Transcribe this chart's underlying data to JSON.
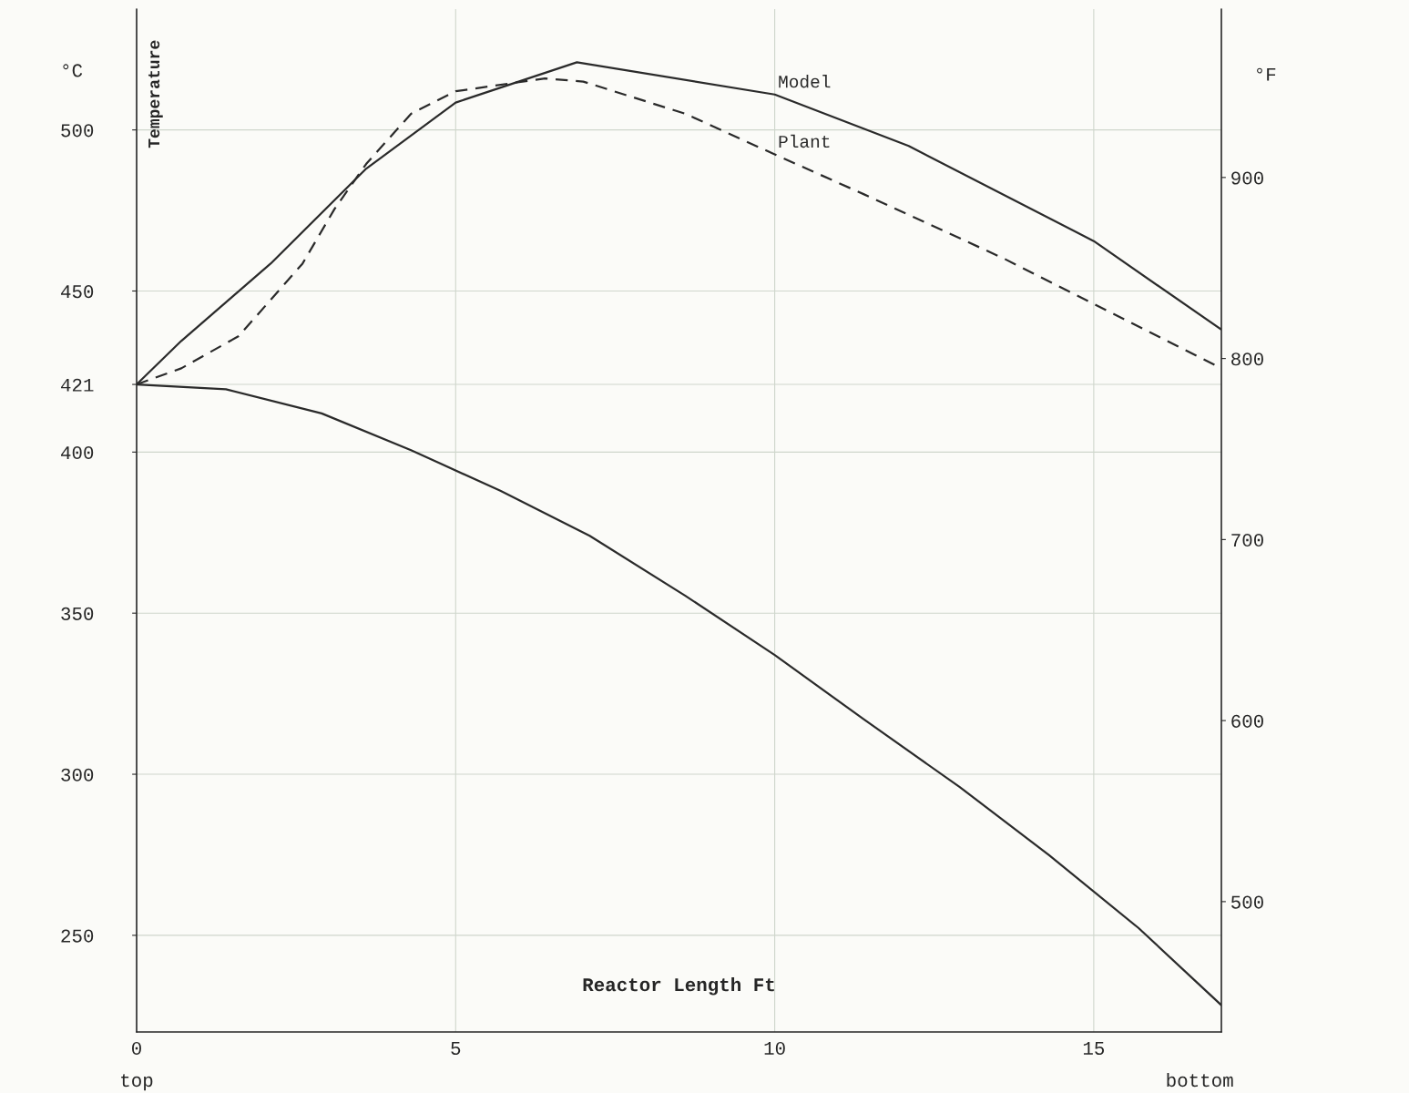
{
  "chart_data": {
    "type": "line",
    "xlabel": "Reactor Length Ft",
    "ylabel": "Temperature",
    "y2label": "°F",
    "annotations": [
      "°C",
      "top",
      "bottom"
    ],
    "xlim": [
      0,
      17
    ],
    "xticks": [
      0,
      5,
      10,
      15
    ],
    "ylim": [
      220,
      537.5
    ],
    "yticks": [
      250,
      300,
      350,
      400,
      421,
      450,
      500
    ],
    "y2lim": [
      428,
      993
    ],
    "y2ticks": [
      500,
      600,
      700,
      800,
      900
    ],
    "grid": true,
    "legend": false,
    "series": [
      {
        "name": "Model",
        "color": "#2a2a2a",
        "line_style": "solid",
        "x": [
          0,
          0.7,
          2.1,
          3.6,
          5,
          6.9,
          10,
          12.1,
          15,
          17
        ],
        "values": [
          421,
          434.5,
          458.5,
          488,
          508.5,
          521,
          511,
          495,
          465.5,
          438
        ]
      },
      {
        "name": "Plant",
        "color": "#2a2a2a",
        "line_style": "dashed",
        "x": [
          0,
          0.7,
          1.6,
          2.6,
          3.1,
          3.6,
          4.3,
          5,
          6.4,
          7,
          8.6,
          10,
          11.4,
          13.6,
          15,
          17
        ],
        "values": [
          421,
          426,
          436,
          458.5,
          475.4,
          489.5,
          505,
          512,
          516,
          515,
          505,
          492.4,
          480,
          460,
          446,
          426
        ]
      },
      {
        "color": "#2a2a2a",
        "line_style": "solid",
        "x": [
          0,
          1.4,
          2.9,
          4.3,
          5.7,
          7.1,
          8.6,
          10,
          11.4,
          12.9,
          14.3,
          15.7,
          17
        ],
        "values": [
          421,
          419.5,
          412,
          400.6,
          388,
          374,
          355.4,
          337,
          317,
          296,
          274.9,
          252.3,
          228.3
        ]
      }
    ]
  }
}
